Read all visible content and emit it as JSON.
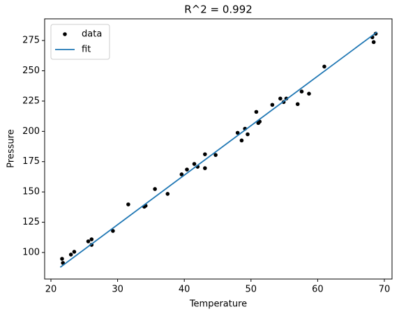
{
  "chart_data": {
    "type": "scatter",
    "title": "R^2 = 0.992",
    "xlabel": "Temperature",
    "ylabel": "Pressure",
    "xlim": [
      19.06,
      71.15
    ],
    "ylim": [
      78.1,
      292.9
    ],
    "xticks": [
      20,
      30,
      40,
      50,
      60,
      70
    ],
    "yticks": [
      100,
      125,
      150,
      175,
      200,
      225,
      250,
      275
    ],
    "legend": "upper left",
    "series": [
      {
        "name": "data",
        "type": "scatter",
        "color": "#000000",
        "x": [
          21.67,
          21.8,
          23.0,
          23.5,
          25.6,
          26.1,
          26.1,
          29.3,
          31.6,
          34.0,
          34.2,
          35.6,
          37.5,
          39.6,
          40.4,
          41.5,
          42.0,
          43.1,
          43.1,
          44.7,
          48.0,
          48.6,
          49.1,
          49.5,
          50.8,
          51.1,
          51.3,
          53.2,
          54.4,
          54.9,
          55.3,
          57.0,
          57.6,
          58.7,
          61.0,
          68.2,
          68.4,
          68.7
        ],
        "values": [
          94.8,
          91.4,
          98.3,
          100.6,
          109.2,
          110.9,
          106.3,
          117.8,
          139.7,
          137.8,
          138.6,
          152.4,
          148.4,
          164.5,
          168.5,
          173.1,
          170.8,
          181.1,
          169.6,
          180.5,
          198.8,
          192.5,
          202.2,
          197.6,
          216.1,
          206.9,
          208.1,
          221.9,
          227.1,
          224.2,
          227.1,
          222.5,
          232.9,
          231.1,
          253.5,
          277.7,
          273.7,
          280.6
        ]
      },
      {
        "name": "fit",
        "type": "line",
        "color": "#1f77b4",
        "x": [
          21.4,
          68.9
        ],
        "values": [
          87.8,
          282.0
        ]
      }
    ]
  }
}
